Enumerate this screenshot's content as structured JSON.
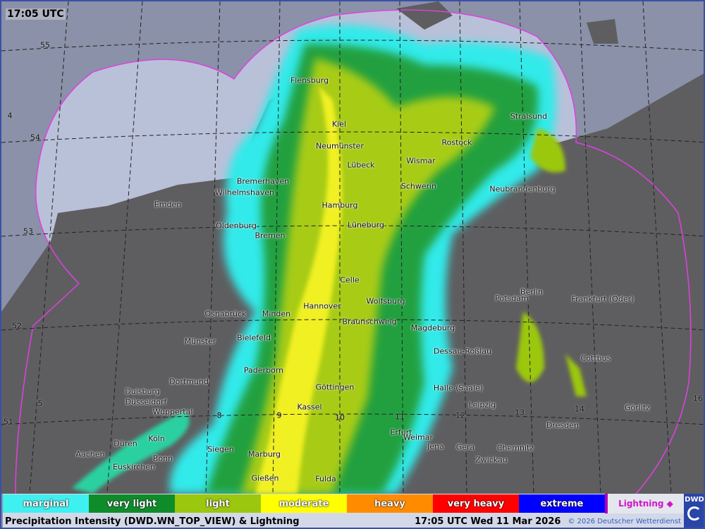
{
  "timestamp_overlay": "17:05 UTC",
  "legend": [
    {
      "label": "marginal",
      "color": "#3ff0f0"
    },
    {
      "label": "very light",
      "color": "#0f8c2a"
    },
    {
      "label": "light",
      "color": "#9bc70e"
    },
    {
      "label": "moderate",
      "color": "#ffff00"
    },
    {
      "label": "heavy",
      "color": "#ff8c00"
    },
    {
      "label": "very heavy",
      "color": "#ff0000"
    },
    {
      "label": "extreme",
      "color": "#0000ff"
    },
    {
      "label": "",
      "color": "#b000b0"
    }
  ],
  "lightning_label": "Lightning ◆",
  "footer": {
    "title": "Precipitation Intensity (DWD.WN_TOP_VIEW) & Lightning",
    "datetime": "17:05 UTC Wed 11 Mar 2026",
    "copyright": "© 2026 Deutscher Wetterdienst"
  },
  "logo": "DWD",
  "cities": [
    "Flensburg",
    "Kiel",
    "Neumünster",
    "Lübeck",
    "Wismar",
    "Rostock",
    "Stralsund",
    "Bremerhaven",
    "Wilhelmshaven",
    "Emden",
    "Hamburg",
    "Schwerin",
    "Neubrandenburg",
    "Oldenburg",
    "Bremen",
    "Lüneburg",
    "Celle",
    "Berlin",
    "Potsdam",
    "Frankfurt (Oder)",
    "Osnabrück",
    "Minden",
    "Hannover",
    "Wolfsburg",
    "Braunschweig",
    "Magdeburg",
    "Bielefeld",
    "Münster",
    "Dessau-Roßlau",
    "Cottbus",
    "Paderborn",
    "Dortmund",
    "Duisburg",
    "Düsseldorf",
    "Wuppertal",
    "Göttingen",
    "Halle (Saale)",
    "Kassel",
    "Leipzig",
    "Görlitz",
    "Köln",
    "Dresden",
    "Erfurt",
    "Weimar",
    "Jena",
    "Gera",
    "Chemnitz",
    "Siegen",
    "Marburg",
    "Düren",
    "Aachen",
    "Bonn",
    "Euskirchen",
    "Zwickau",
    "Gießen",
    "Fulda"
  ],
  "grid_labels": [
    "55",
    "54",
    "53",
    "52",
    "51",
    "4",
    "5",
    "8",
    "9",
    "10",
    "11",
    "12",
    "13",
    "14",
    "16"
  ],
  "colors": {
    "range_outline": "#e040e0",
    "sea": "#8a91a8",
    "radar_area": "#b9c1d9",
    "land": "#5a5a5a"
  }
}
